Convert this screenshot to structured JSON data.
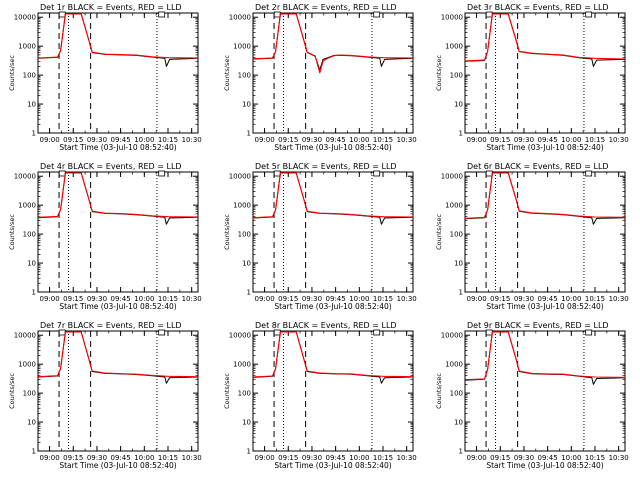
{
  "figure": {
    "rows": 3,
    "cols": 3,
    "colors": {
      "events": "#000000",
      "lld": "#ff0000",
      "axes": "#000000",
      "background": "#ffffff"
    }
  },
  "chart_data": [
    {
      "type": "line",
      "scale_y": "log",
      "title": "Det 1r BLACK = Events, RED = LLD",
      "xlabel": "Start Time (03-Jul-10 08:52:40)",
      "ylabel": "Counts/sec",
      "xlim": [
        "08:52:40",
        "10:34:00"
      ],
      "ylim": [
        1,
        14000
      ],
      "xticklabels": [
        "09:00",
        "09:15",
        "09:30",
        "09:45",
        "10:00",
        "10:15",
        "10:30"
      ],
      "yticklabels": [
        "1",
        "10",
        "100",
        "1000",
        "10000"
      ],
      "dashed_lines": [
        "09:06",
        "09:26"
      ],
      "dotted_lines": [
        "09:12",
        "10:08"
      ],
      "legend_box_x": [
        "09:08",
        "10:11"
      ],
      "series": [
        {
          "name": "BLACK = Events",
          "color": "#000000",
          "x": [
            "08:52:40",
            "09:05",
            "09:07",
            "09:10",
            "09:20",
            "09:25",
            "09:27",
            "09:35",
            "09:45",
            "09:55",
            "10:05",
            "10:13",
            "10:14",
            "10:16",
            "10:34"
          ],
          "y": [
            380,
            410,
            700,
            13000,
            13000,
            1500,
            600,
            520,
            500,
            480,
            420,
            380,
            200,
            350,
            380
          ]
        },
        {
          "name": "RED = LLD",
          "color": "#ff0000",
          "x": [
            "08:52:40",
            "09:05",
            "09:07",
            "09:10",
            "09:20",
            "09:25",
            "09:27",
            "09:35",
            "09:45",
            "09:55",
            "10:05",
            "10:15",
            "10:34"
          ],
          "y": [
            390,
            420,
            700,
            13000,
            13000,
            1500,
            620,
            530,
            510,
            490,
            430,
            400,
            390
          ]
        }
      ]
    },
    {
      "type": "line",
      "scale_y": "log",
      "title": "Det 2r BLACK = Events, RED = LLD",
      "xlabel": "Start Time (03-Jul-10 08:52:40)",
      "ylabel": "Counts/sec",
      "xlim": [
        "08:52:40",
        "10:34:00"
      ],
      "ylim": [
        1,
        14000
      ],
      "xticklabels": [
        "09:00",
        "09:15",
        "09:30",
        "09:45",
        "10:00",
        "10:15",
        "10:30"
      ],
      "yticklabels": [
        "1",
        "10",
        "100",
        "1000",
        "10000"
      ],
      "dashed_lines": [
        "09:06",
        "09:26"
      ],
      "dotted_lines": [
        "09:12",
        "10:08"
      ],
      "legend_box_x": [
        "09:08",
        "10:11"
      ],
      "series": [
        {
          "name": "BLACK = Events",
          "color": "#000000",
          "x": [
            "08:52:40",
            "09:05",
            "09:07",
            "09:10",
            "09:20",
            "09:25",
            "09:27",
            "09:32",
            "09:35",
            "09:37",
            "09:40",
            "09:44",
            "09:48",
            "09:55",
            "10:05",
            "10:13",
            "10:14",
            "10:16",
            "10:34"
          ],
          "y": [
            360,
            380,
            650,
            13000,
            13000,
            1500,
            600,
            450,
            150,
            350,
            400,
            480,
            480,
            470,
            420,
            380,
            200,
            350,
            380
          ]
        },
        {
          "name": "RED = LLD",
          "color": "#ff0000",
          "x": [
            "08:52:40",
            "09:05",
            "09:07",
            "09:10",
            "09:20",
            "09:25",
            "09:27",
            "09:32",
            "09:35",
            "09:37",
            "09:40",
            "09:44",
            "09:48",
            "09:55",
            "10:05",
            "10:15",
            "10:34"
          ],
          "y": [
            370,
            390,
            660,
            13000,
            13000,
            1500,
            620,
            460,
            120,
            300,
            380,
            470,
            490,
            480,
            430,
            400,
            390
          ]
        }
      ]
    },
    {
      "type": "line",
      "scale_y": "log",
      "title": "Det 3r BLACK = Events, RED = LLD",
      "xlabel": "Start Time (03-Jul-10 08:52:40)",
      "ylabel": "Counts/sec",
      "xlim": [
        "08:52:40",
        "10:34:00"
      ],
      "ylim": [
        1,
        14000
      ],
      "xticklabels": [
        "09:00",
        "09:15",
        "09:30",
        "09:45",
        "10:00",
        "10:15",
        "10:30"
      ],
      "yticklabels": [
        "1",
        "10",
        "100",
        "1000",
        "10000"
      ],
      "dashed_lines": [
        "09:06",
        "09:26"
      ],
      "dotted_lines": [
        "09:12",
        "10:08"
      ],
      "legend_box_x": [
        "09:08",
        "10:11"
      ],
      "series": [
        {
          "name": "BLACK = Events",
          "color": "#000000",
          "x": [
            "08:52:40",
            "09:05",
            "09:07",
            "09:10",
            "09:20",
            "09:25",
            "09:27",
            "09:35",
            "09:45",
            "09:55",
            "10:05",
            "10:13",
            "10:14",
            "10:16",
            "10:34"
          ],
          "y": [
            300,
            320,
            650,
            13000,
            13000,
            1600,
            650,
            560,
            520,
            480,
            400,
            360,
            200,
            330,
            350
          ]
        },
        {
          "name": "RED = LLD",
          "color": "#ff0000",
          "x": [
            "08:52:40",
            "09:05",
            "09:07",
            "09:10",
            "09:20",
            "09:25",
            "09:27",
            "09:35",
            "09:45",
            "09:55",
            "10:05",
            "10:15",
            "10:34"
          ],
          "y": [
            310,
            330,
            660,
            13000,
            13000,
            1600,
            660,
            570,
            530,
            490,
            410,
            380,
            360
          ]
        }
      ]
    },
    {
      "type": "line",
      "scale_y": "log",
      "title": "Det 4r BLACK = Events, RED = LLD",
      "xlabel": "Start Time (03-Jul-10 08:52:40)",
      "ylabel": "Counts/sec",
      "xlim": [
        "08:52:40",
        "10:34:00"
      ],
      "ylim": [
        1,
        14000
      ],
      "xticklabels": [
        "09:00",
        "09:15",
        "09:30",
        "09:45",
        "10:00",
        "10:15",
        "10:30"
      ],
      "yticklabels": [
        "1",
        "10",
        "100",
        "1000",
        "10000"
      ],
      "dashed_lines": [
        "09:06",
        "09:26"
      ],
      "dotted_lines": [
        "09:12",
        "10:08"
      ],
      "legend_box_x": [
        "09:08",
        "10:11"
      ],
      "series": [
        {
          "name": "BLACK = Events",
          "color": "#000000",
          "x": [
            "08:52:40",
            "09:05",
            "09:07",
            "09:10",
            "09:20",
            "09:25",
            "09:27",
            "09:35",
            "09:45",
            "09:55",
            "10:05",
            "10:13",
            "10:14",
            "10:16",
            "10:34"
          ],
          "y": [
            370,
            400,
            700,
            13000,
            13000,
            1500,
            600,
            520,
            500,
            470,
            420,
            380,
            220,
            360,
            380
          ]
        },
        {
          "name": "RED = LLD",
          "color": "#ff0000",
          "x": [
            "08:52:40",
            "09:05",
            "09:07",
            "09:10",
            "09:20",
            "09:25",
            "09:27",
            "09:35",
            "09:45",
            "09:55",
            "10:05",
            "10:15",
            "10:34"
          ],
          "y": [
            380,
            410,
            710,
            13000,
            13000,
            1500,
            620,
            530,
            510,
            480,
            430,
            400,
            390
          ]
        }
      ]
    },
    {
      "type": "line",
      "scale_y": "log",
      "title": "Det 5r BLACK = Events, RED = LLD",
      "xlabel": "Start Time (03-Jul-10 08:52:40)",
      "ylabel": "Counts/sec",
      "xlim": [
        "08:52:40",
        "10:34:00"
      ],
      "ylim": [
        1,
        14000
      ],
      "xticklabels": [
        "09:00",
        "09:15",
        "09:30",
        "09:45",
        "10:00",
        "10:15",
        "10:30"
      ],
      "yticklabels": [
        "1",
        "10",
        "100",
        "1000",
        "10000"
      ],
      "dashed_lines": [
        "09:06",
        "09:26"
      ],
      "dotted_lines": [
        "09:12",
        "10:08"
      ],
      "legend_box_x": [
        "09:08",
        "10:11"
      ],
      "series": [
        {
          "name": "BLACK = Events",
          "color": "#000000",
          "x": [
            "08:52:40",
            "09:05",
            "09:07",
            "09:10",
            "09:20",
            "09:25",
            "09:27",
            "09:35",
            "09:45",
            "09:55",
            "10:05",
            "10:13",
            "10:14",
            "10:16",
            "10:34"
          ],
          "y": [
            360,
            390,
            680,
            13000,
            13000,
            1500,
            600,
            520,
            500,
            470,
            420,
            380,
            220,
            360,
            380
          ]
        },
        {
          "name": "RED = LLD",
          "color": "#ff0000",
          "x": [
            "08:52:40",
            "09:05",
            "09:07",
            "09:10",
            "09:20",
            "09:25",
            "09:27",
            "09:35",
            "09:45",
            "09:55",
            "10:05",
            "10:15",
            "10:34"
          ],
          "y": [
            370,
            400,
            690,
            13000,
            13000,
            1500,
            620,
            530,
            510,
            480,
            430,
            400,
            390
          ]
        }
      ]
    },
    {
      "type": "line",
      "scale_y": "log",
      "title": "Det 6r BLACK = Events, RED = LLD",
      "xlabel": "Start Time (03-Jul-10 08:52:40)",
      "ylabel": "Counts/sec",
      "xlim": [
        "08:52:40",
        "10:34:00"
      ],
      "ylim": [
        1,
        14000
      ],
      "xticklabels": [
        "09:00",
        "09:15",
        "09:30",
        "09:45",
        "10:00",
        "10:15",
        "10:30"
      ],
      "yticklabels": [
        "1",
        "10",
        "100",
        "1000",
        "10000"
      ],
      "dashed_lines": [
        "09:06",
        "09:26"
      ],
      "dotted_lines": [
        "09:12",
        "10:08"
      ],
      "legend_box_x": [
        "09:08",
        "10:11"
      ],
      "series": [
        {
          "name": "BLACK = Events",
          "color": "#000000",
          "x": [
            "08:52:40",
            "09:05",
            "09:07",
            "09:10",
            "09:20",
            "09:25",
            "09:27",
            "09:35",
            "09:45",
            "09:55",
            "10:05",
            "10:13",
            "10:14",
            "10:16",
            "10:34"
          ],
          "y": [
            340,
            370,
            680,
            13000,
            13000,
            1600,
            620,
            530,
            500,
            470,
            410,
            370,
            220,
            350,
            370
          ]
        },
        {
          "name": "RED = LLD",
          "color": "#ff0000",
          "x": [
            "08:52:40",
            "09:05",
            "09:07",
            "09:10",
            "09:20",
            "09:25",
            "09:27",
            "09:35",
            "09:45",
            "09:55",
            "10:05",
            "10:15",
            "10:34"
          ],
          "y": [
            350,
            380,
            690,
            13000,
            13000,
            1600,
            640,
            540,
            510,
            480,
            420,
            390,
            380
          ]
        }
      ]
    },
    {
      "type": "line",
      "scale_y": "log",
      "title": "Det 7r BLACK = Events, RED = LLD",
      "xlabel": "Start Time (03-Jul-10 08:52:40)",
      "ylabel": "Counts/sec",
      "xlim": [
        "08:52:40",
        "10:34:00"
      ],
      "ylim": [
        1,
        14000
      ],
      "xticklabels": [
        "09:00",
        "09:15",
        "09:30",
        "09:45",
        "10:00",
        "10:15",
        "10:30"
      ],
      "yticklabels": [
        "1",
        "10",
        "100",
        "1000",
        "10000"
      ],
      "dashed_lines": [
        "09:06",
        "09:26"
      ],
      "dotted_lines": [
        "09:12",
        "10:08"
      ],
      "legend_box_x": [
        "09:08",
        "10:11"
      ],
      "series": [
        {
          "name": "BLACK = Events",
          "color": "#000000",
          "x": [
            "08:52:40",
            "09:05",
            "09:07",
            "09:10",
            "09:20",
            "09:25",
            "09:27",
            "09:35",
            "09:45",
            "09:55",
            "10:05",
            "10:13",
            "10:14",
            "10:16",
            "10:34"
          ],
          "y": [
            360,
            390,
            700,
            13000,
            13000,
            1400,
            560,
            480,
            460,
            440,
            400,
            360,
            220,
            340,
            360
          ]
        },
        {
          "name": "RED = LLD",
          "color": "#ff0000",
          "x": [
            "08:52:40",
            "09:05",
            "09:07",
            "09:10",
            "09:20",
            "09:25",
            "09:27",
            "09:35",
            "09:45",
            "09:55",
            "10:05",
            "10:15",
            "10:34"
          ],
          "y": [
            370,
            400,
            710,
            13000,
            13000,
            1400,
            580,
            490,
            470,
            450,
            410,
            380,
            370
          ]
        }
      ]
    },
    {
      "type": "line",
      "scale_y": "log",
      "title": "Det 8r BLACK = Events, RED = LLD",
      "xlabel": "Start Time (03-Jul-10 08:52:40)",
      "ylabel": "Counts/sec",
      "xlim": [
        "08:52:40",
        "10:34:00"
      ],
      "ylim": [
        1,
        14000
      ],
      "xticklabels": [
        "09:00",
        "09:15",
        "09:30",
        "09:45",
        "10:00",
        "10:15",
        "10:30"
      ],
      "yticklabels": [
        "1",
        "10",
        "100",
        "1000",
        "10000"
      ],
      "dashed_lines": [
        "09:06",
        "09:26"
      ],
      "dotted_lines": [
        "09:12",
        "10:08"
      ],
      "legend_box_x": [
        "09:08",
        "10:11"
      ],
      "series": [
        {
          "name": "BLACK = Events",
          "color": "#000000",
          "x": [
            "08:52:40",
            "09:05",
            "09:07",
            "09:10",
            "09:20",
            "09:25",
            "09:27",
            "09:35",
            "09:45",
            "09:55",
            "10:05",
            "10:13",
            "10:14",
            "10:16",
            "10:34"
          ],
          "y": [
            350,
            380,
            700,
            13000,
            13000,
            1400,
            560,
            480,
            460,
            450,
            400,
            360,
            220,
            340,
            360
          ]
        },
        {
          "name": "RED = LLD",
          "color": "#ff0000",
          "x": [
            "08:52:40",
            "09:05",
            "09:07",
            "09:10",
            "09:20",
            "09:25",
            "09:27",
            "09:35",
            "09:45",
            "09:55",
            "10:05",
            "10:15",
            "10:34"
          ],
          "y": [
            360,
            390,
            710,
            13000,
            13000,
            1400,
            580,
            490,
            470,
            460,
            410,
            380,
            370
          ]
        }
      ]
    },
    {
      "type": "line",
      "scale_y": "log",
      "title": "Det 9r BLACK = Events, RED = LLD",
      "xlabel": "Start Time (03-Jul-10 08:52:40)",
      "ylabel": "Counts/sec",
      "xlim": [
        "08:52:40",
        "10:34:00"
      ],
      "ylim": [
        1,
        14000
      ],
      "xticklabels": [
        "09:00",
        "09:15",
        "09:30",
        "09:45",
        "10:00",
        "10:15",
        "10:30"
      ],
      "yticklabels": [
        "1",
        "10",
        "100",
        "1000",
        "10000"
      ],
      "dashed_lines": [
        "09:06",
        "09:26"
      ],
      "dotted_lines": [
        "09:12",
        "10:08"
      ],
      "legend_box_x": [
        "09:08",
        "10:11"
      ],
      "series": [
        {
          "name": "BLACK = Events",
          "color": "#000000",
          "x": [
            "08:52:40",
            "09:05",
            "09:07",
            "09:10",
            "09:20",
            "09:25",
            "09:27",
            "09:35",
            "09:45",
            "09:55",
            "10:05",
            "10:13",
            "10:14",
            "10:16",
            "10:34"
          ],
          "y": [
            280,
            300,
            650,
            13000,
            13000,
            1500,
            560,
            470,
            450,
            440,
            380,
            340,
            200,
            320,
            340
          ]
        },
        {
          "name": "RED = LLD",
          "color": "#ff0000",
          "x": [
            "08:52:40",
            "09:05",
            "09:07",
            "09:10",
            "09:20",
            "09:25",
            "09:27",
            "09:35",
            "09:45",
            "09:55",
            "10:05",
            "10:15",
            "10:34"
          ],
          "y": [
            290,
            310,
            660,
            13000,
            13000,
            1500,
            580,
            480,
            460,
            450,
            390,
            360,
            350
          ]
        }
      ]
    }
  ]
}
